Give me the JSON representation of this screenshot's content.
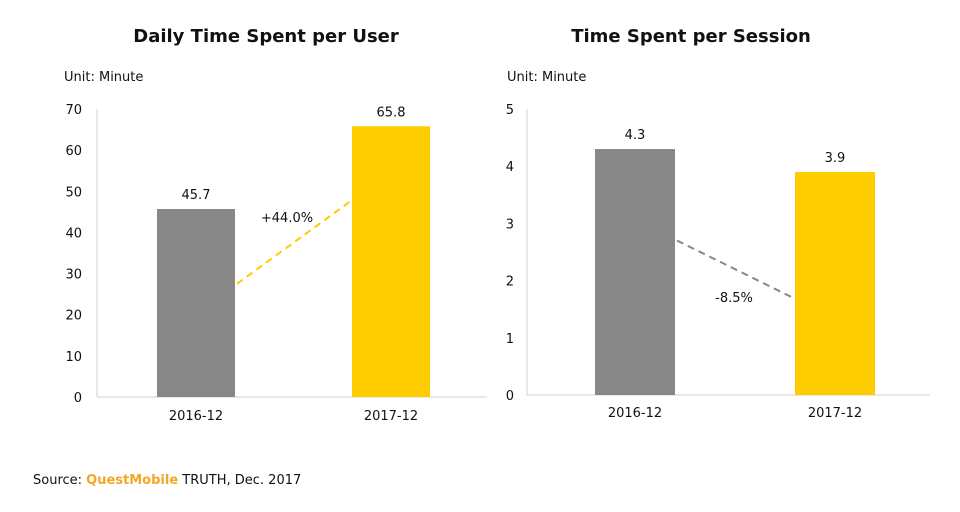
{
  "chart_data": [
    {
      "type": "bar",
      "title": "Daily Time Spent per User",
      "unit_label": "Unit: Minute",
      "categories": [
        "2016-12",
        "2017-12"
      ],
      "values": [
        45.7,
        65.8
      ],
      "value_labels": [
        "45.7",
        "65.8"
      ],
      "ylim": [
        0,
        70
      ],
      "yticks": [
        0,
        10,
        20,
        30,
        40,
        50,
        60,
        70
      ],
      "bar_colors": [
        "#878787",
        "#ffcc00"
      ],
      "change_label": "+44.0%",
      "change_line_color": "#ffcc00",
      "grid": false
    },
    {
      "type": "bar",
      "title": "Time Spent per Session",
      "unit_label": "Unit: Minute",
      "categories": [
        "2016-12",
        "2017-12"
      ],
      "values": [
        4.3,
        3.9
      ],
      "value_labels": [
        "4.3",
        "3.9"
      ],
      "ylim": [
        0,
        5
      ],
      "yticks": [
        0,
        1,
        2,
        3,
        4,
        5
      ],
      "bar_colors": [
        "#878787",
        "#ffcc00"
      ],
      "change_label": "-8.5%",
      "change_line_color": "#878787",
      "grid": false
    }
  ],
  "source": {
    "prefix": "Source: ",
    "brand": "QuestMobile",
    "suffix": " TRUTH, Dec. 2017",
    "brand_color": "#f5a623"
  }
}
